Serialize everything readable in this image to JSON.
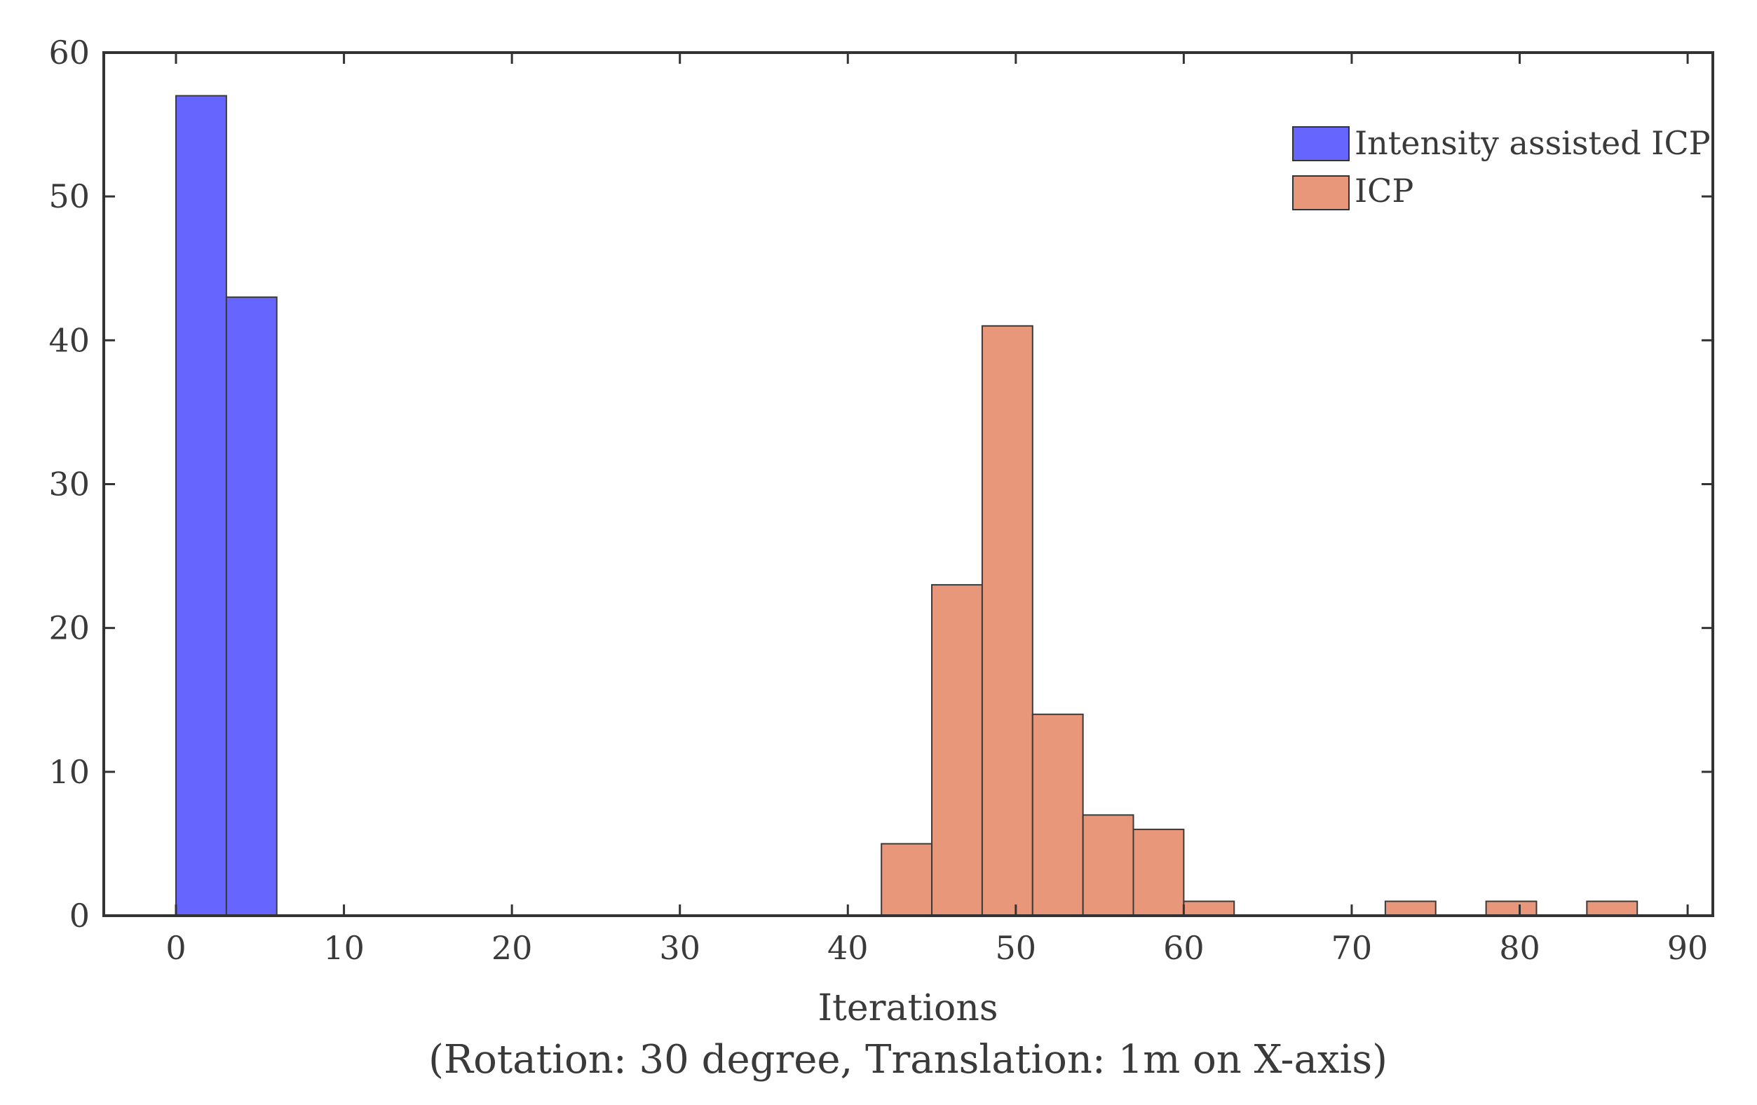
{
  "chart_data": {
    "type": "bar",
    "title": "",
    "xlabel": "Iterations",
    "caption": "(Rotation: 30 degree, Translation: 1m on X-axis)",
    "ylabel": "",
    "xlim": [
      -4.3,
      91.5
    ],
    "ylim": [
      0,
      60
    ],
    "x_ticks": [
      0,
      10,
      20,
      30,
      40,
      50,
      60,
      70,
      80,
      90
    ],
    "y_ticks": [
      0,
      10,
      20,
      30,
      40,
      50,
      60
    ],
    "bin_width": 3,
    "legend_position": "top-right",
    "series": [
      {
        "name": "Intensity assisted ICP",
        "color": "#6666ff",
        "bin_starts": [
          0,
          3
        ],
        "values": [
          57,
          43
        ]
      },
      {
        "name": "ICP",
        "color": "#e8977a",
        "bin_starts": [
          42,
          45,
          48,
          51,
          54,
          57,
          60,
          72,
          78,
          84
        ],
        "values": [
          5,
          23,
          41,
          14,
          7,
          6,
          1,
          1,
          1,
          1
        ]
      }
    ]
  }
}
